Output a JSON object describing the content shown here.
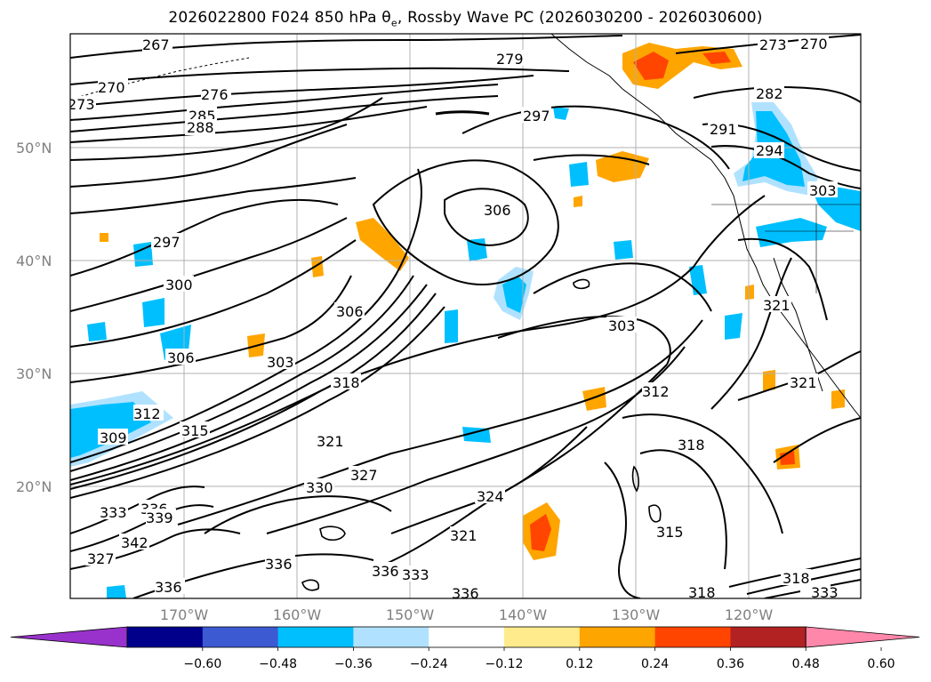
{
  "title": {
    "prefix": "2026022800 F024 850 hPa θ",
    "sub": "e",
    "suffix": ", Rossby Wave PC (2026030200 - 2026030600)"
  },
  "map": {
    "lat_labels": [
      "50°N",
      "40°N",
      "30°N",
      "20°N"
    ],
    "lon_labels": [
      "170°W",
      "160°W",
      "150°W",
      "140°W",
      "130°W",
      "120°W"
    ],
    "contour_labels": [
      "267",
      "270",
      "273",
      "276",
      "279",
      "282",
      "285",
      "288",
      "291",
      "294",
      "297",
      "300",
      "303",
      "306",
      "309",
      "312",
      "315",
      "318",
      "321",
      "324",
      "327",
      "330",
      "333",
      "336",
      "339",
      "342"
    ],
    "shading_colors": {
      "pos_024": "#ffa500",
      "pos_036": "#ff4500",
      "neg_024": "#00bfff",
      "neg_012": "#add8e6",
      "pos_012": "#fff08c"
    }
  },
  "colorbar": {
    "ticks": [
      "−0.60",
      "−0.48",
      "−0.36",
      "−0.24",
      "−0.12",
      "0.12",
      "0.24",
      "0.36",
      "0.48",
      "0.60"
    ],
    "colors": [
      "#9932cc",
      "#00008b",
      "#3c5ad2",
      "#00bfff",
      "#b0e2ff",
      "#ffffff",
      "#ffeb8c",
      "#ffa500",
      "#ff4500",
      "#b22222",
      "#ff88aa"
    ]
  }
}
